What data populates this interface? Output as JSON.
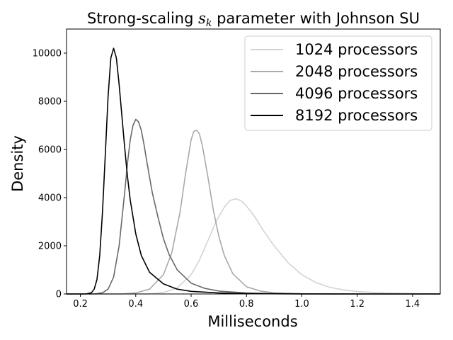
{
  "chart_data": {
    "type": "line",
    "title_prefix": "Strong-scaling ",
    "title_symbol": "s",
    "title_subscript": "k",
    "title_suffix": " parameter with Johnson SU",
    "xlabel": "Milliseconds",
    "ylabel": "Density",
    "xlim": [
      0.15,
      1.5
    ],
    "ylim": [
      0,
      11000
    ],
    "xticks": [
      0.2,
      0.4,
      0.6,
      0.8,
      1.0,
      1.2,
      1.4
    ],
    "xtick_labels": [
      "0.2",
      "0.4",
      "0.6",
      "0.8",
      "1.0",
      "1.2",
      "1.4"
    ],
    "yticks": [
      0,
      2000,
      4000,
      6000,
      8000,
      10000
    ],
    "ytick_labels": [
      "0",
      "2000",
      "4000",
      "6000",
      "8000",
      "10000"
    ],
    "grid": false,
    "legend_position": "top-right",
    "series": [
      {
        "name": "1024 processors",
        "color": "#d3d3d3",
        "x": [
          0.15,
          0.45,
          0.5,
          0.55,
          0.6,
          0.63,
          0.66,
          0.69,
          0.72,
          0.74,
          0.76,
          0.78,
          0.8,
          0.83,
          0.86,
          0.9,
          0.95,
          1.0,
          1.05,
          1.1,
          1.15,
          1.2,
          1.3,
          1.4,
          1.5
        ],
        "y": [
          0,
          0,
          60,
          250,
          800,
          1400,
          2200,
          3000,
          3600,
          3880,
          3950,
          3880,
          3650,
          3200,
          2650,
          2000,
          1300,
          800,
          480,
          280,
          170,
          100,
          40,
          15,
          5
        ]
      },
      {
        "name": "2048 processors",
        "color": "#a9a9a9",
        "x": [
          0.15,
          0.35,
          0.4,
          0.45,
          0.5,
          0.53,
          0.56,
          0.58,
          0.6,
          0.61,
          0.62,
          0.63,
          0.64,
          0.66,
          0.68,
          0.7,
          0.72,
          0.75,
          0.8,
          0.85,
          0.9,
          1.0,
          1.1,
          1.5
        ],
        "y": [
          0,
          0,
          40,
          200,
          800,
          1700,
          3400,
          5000,
          6400,
          6750,
          6800,
          6650,
          6200,
          4900,
          3500,
          2400,
          1600,
          850,
          300,
          120,
          50,
          10,
          2,
          0
        ]
      },
      {
        "name": "4096 processors",
        "color": "#696969",
        "x": [
          0.15,
          0.25,
          0.28,
          0.3,
          0.32,
          0.34,
          0.36,
          0.37,
          0.38,
          0.39,
          0.4,
          0.41,
          0.42,
          0.43,
          0.44,
          0.46,
          0.48,
          0.5,
          0.52,
          0.55,
          0.6,
          0.65,
          0.7,
          0.8,
          0.9,
          1.0,
          1.2,
          1.5
        ],
        "y": [
          0,
          0,
          50,
          200,
          700,
          2000,
          4200,
          5400,
          6400,
          7000,
          7250,
          7150,
          6800,
          6200,
          5500,
          4200,
          3200,
          2300,
          1650,
          1000,
          450,
          230,
          120,
          40,
          15,
          6,
          1,
          0
        ]
      },
      {
        "name": "8192 processors",
        "color": "#000000",
        "x": [
          0.15,
          0.22,
          0.24,
          0.25,
          0.26,
          0.27,
          0.28,
          0.29,
          0.3,
          0.31,
          0.32,
          0.33,
          0.34,
          0.35,
          0.36,
          0.37,
          0.38,
          0.4,
          0.42,
          0.45,
          0.5,
          0.55,
          0.6,
          0.7,
          0.8,
          1.0,
          1.2,
          1.5
        ],
        "y": [
          0,
          0,
          50,
          200,
          600,
          1600,
          3400,
          5800,
          8200,
          9800,
          10200,
          9800,
          8700,
          7400,
          6100,
          4900,
          3900,
          2500,
          1600,
          900,
          420,
          200,
          110,
          40,
          15,
          3,
          1,
          0
        ]
      }
    ]
  }
}
